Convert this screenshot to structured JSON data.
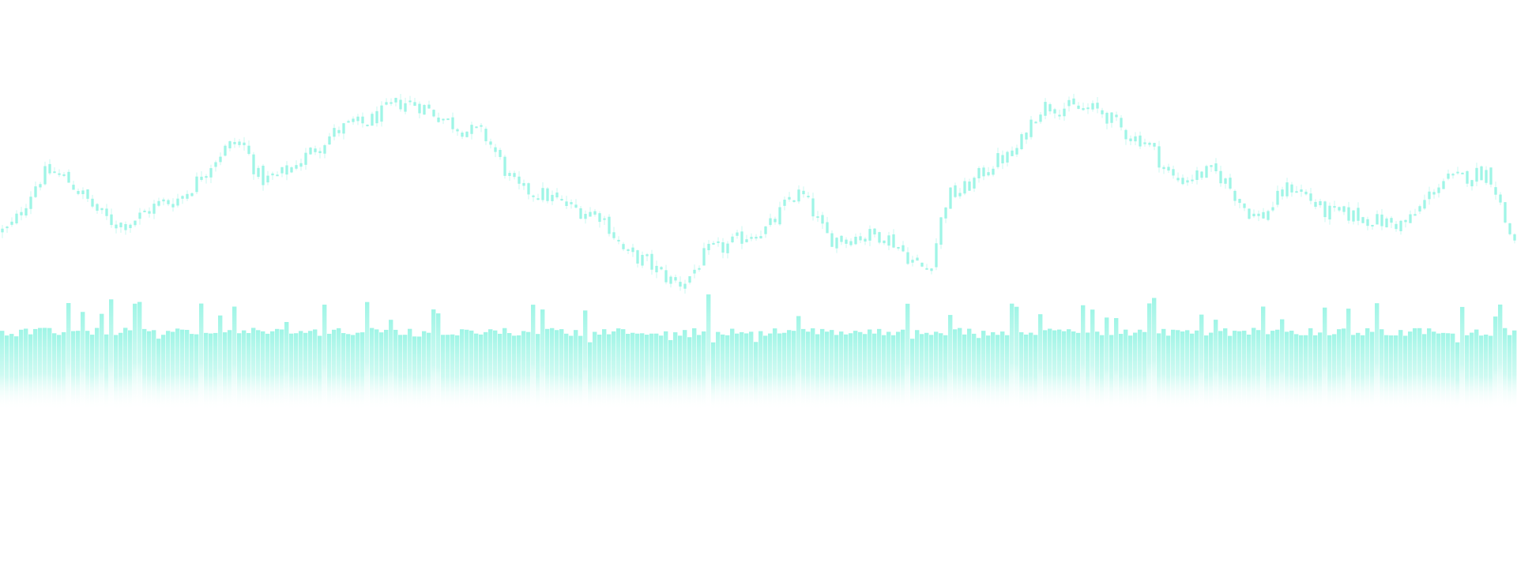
{
  "chart_data": {
    "type": "candlestick",
    "title": "",
    "xlabel": "",
    "ylabel": "",
    "grid": false,
    "legend": "none",
    "colors": {
      "candle": "#9ff5e6",
      "volume": "#9ff5e6",
      "volume_fade_to": "#ffffff",
      "background": "#ffffff"
    },
    "candles": {
      "count": 320,
      "close_waypoints": [
        [
          0,
          64
        ],
        [
          10,
          80
        ],
        [
          25,
          66
        ],
        [
          35,
          72
        ],
        [
          50,
          88
        ],
        [
          55,
          78
        ],
        [
          75,
          93
        ],
        [
          85,
          99
        ],
        [
          100,
          91
        ],
        [
          110,
          75
        ],
        [
          125,
          69
        ],
        [
          133,
          57
        ],
        [
          143,
          50
        ],
        [
          150,
          59
        ],
        [
          160,
          64
        ],
        [
          168,
          74
        ],
        [
          175,
          62
        ],
        [
          185,
          63
        ],
        [
          195,
          54
        ],
        [
          200,
          74
        ],
        [
          212,
          84
        ],
        [
          220,
          98
        ],
        [
          230,
          97
        ],
        [
          240,
          89
        ],
        [
          248,
          78
        ],
        [
          255,
          80
        ],
        [
          265,
          68
        ],
        [
          272,
          76
        ],
        [
          280,
          69
        ],
        [
          295,
          66
        ],
        [
          305,
          78
        ],
        [
          313,
          80
        ],
        [
          319,
          62
        ]
      ],
      "y_range": [
        40,
        100
      ]
    },
    "volume": {
      "bars": 320,
      "baseline_level": 0.35,
      "y_range": [
        0,
        1
      ]
    }
  }
}
